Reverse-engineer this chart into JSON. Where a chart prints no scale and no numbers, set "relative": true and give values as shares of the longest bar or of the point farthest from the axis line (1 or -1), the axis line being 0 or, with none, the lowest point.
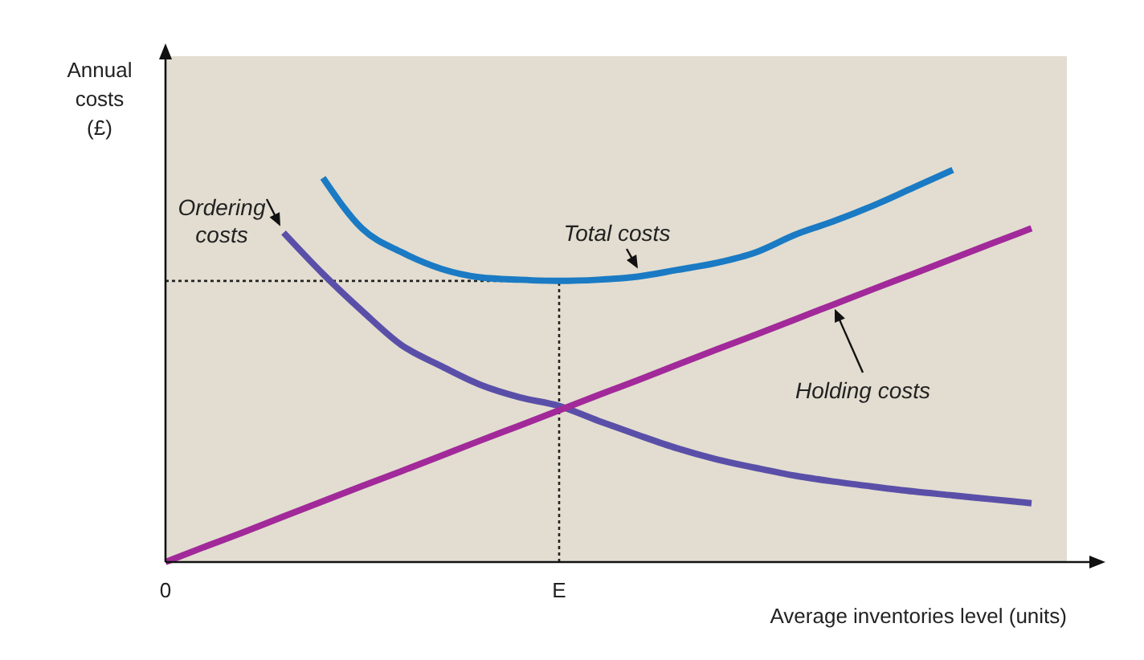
{
  "chart_data": {
    "type": "line",
    "relative": true,
    "xlabel": "Average inventories level (units)",
    "ylabel": "Annual costs (£)",
    "categories": [
      "0",
      null,
      null,
      null,
      null,
      null,
      null,
      null,
      null,
      null,
      "E",
      null,
      null,
      null,
      null,
      null,
      null,
      null,
      null,
      null,
      null,
      null,
      null
    ],
    "grid": false,
    "line_style": "solid",
    "series": [
      {
        "name": "Ordering costs",
        "color": "#5a4fa8",
        "values": [
          null,
          null,
          null,
          0.84,
          0.735,
          0.64,
          0.553,
          0.5,
          0.452,
          0.42,
          0.398,
          0.36,
          0.324,
          0.29,
          0.262,
          0.24,
          0.22,
          0.205,
          0.192,
          0.18,
          0.17,
          0.16,
          0.15
        ]
      },
      {
        "name": "Total costs",
        "color": "#1a7ac4",
        "values": [
          null,
          null,
          null,
          null,
          0.98,
          0.85,
          0.79,
          0.748,
          0.726,
          0.72,
          0.717,
          0.72,
          0.728,
          0.745,
          0.763,
          0.79,
          0.835,
          0.87,
          0.91,
          0.955,
          1.0,
          null,
          null
        ]
      },
      {
        "name": "Holding costs",
        "color": "#a2299a",
        "values": [
          0,
          0.039,
          0.077,
          0.116,
          0.155,
          0.194,
          0.232,
          0.271,
          0.31,
          0.348,
          0.387,
          0.426,
          0.464,
          0.503,
          0.542,
          0.58,
          0.619,
          0.658,
          0.697,
          0.735,
          0.774,
          0.813,
          0.851
        ]
      }
    ],
    "ref_lines": [
      {
        "axis": "y",
        "value": 0.717,
        "line_style": "dotted"
      },
      {
        "axis": "x",
        "value": "E",
        "line_style": "dotted"
      }
    ]
  }
}
